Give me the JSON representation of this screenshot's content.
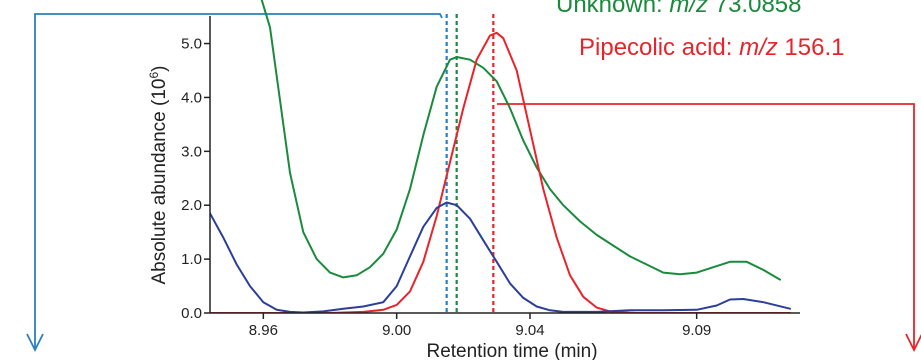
{
  "chart_data": {
    "type": "line",
    "xlabel": "Retention time (min)",
    "ylabel": "Absolute abundance (10⁶)",
    "ylabel_base": "Absolute abundance (10",
    "ylabel_exp": "6",
    "ylabel_close": ")",
    "xlim": [
      8.944,
      9.121
    ],
    "ylim": [
      0,
      5.4
    ],
    "x_ticks": [
      {
        "value": 8.96,
        "label": "8.96"
      },
      {
        "value": 9.0,
        "label": "9.00"
      },
      {
        "value": 9.04,
        "label": "9.04"
      },
      {
        "value": 9.09,
        "label": "9.09"
      }
    ],
    "y_ticks": [
      {
        "value": 0,
        "label": "0.0"
      },
      {
        "value": 1,
        "label": "1.0"
      },
      {
        "value": 2,
        "label": "2.0"
      },
      {
        "value": 3,
        "label": "3.0"
      },
      {
        "value": 4,
        "label": "4.0"
      },
      {
        "value": 5,
        "label": "5.0"
      }
    ],
    "grid": false,
    "legend": [
      {
        "label_prefix": "Unknown: ",
        "label_mz": "m/z",
        "label_value": " 73.0858",
        "color": "#1a8a3c"
      },
      {
        "label_prefix": "Pipecolic acid: ",
        "label_mz": "m/z",
        "label_value": " 156.1",
        "color": "#e8242a"
      }
    ],
    "series": [
      {
        "color": "#1a8a3c",
        "x": [
          8.944,
          8.962,
          8.968,
          8.972,
          8.976,
          8.98,
          8.984,
          8.988,
          8.992,
          8.996,
          9.0,
          9.004,
          9.008,
          9.012,
          9.016,
          9.018,
          9.022,
          9.026,
          9.03,
          9.034,
          9.038,
          9.042,
          9.046,
          9.05,
          9.055,
          9.06,
          9.065,
          9.07,
          9.075,
          9.08,
          9.085,
          9.09,
          9.095,
          9.1,
          9.105,
          9.11,
          9.115
        ],
        "values": [
          9.0,
          5.3,
          2.6,
          1.5,
          1.0,
          0.75,
          0.66,
          0.7,
          0.85,
          1.1,
          1.55,
          2.3,
          3.3,
          4.2,
          4.7,
          4.75,
          4.7,
          4.55,
          4.3,
          3.8,
          3.2,
          2.7,
          2.3,
          2.0,
          1.7,
          1.45,
          1.25,
          1.05,
          0.9,
          0.75,
          0.72,
          0.75,
          0.85,
          0.95,
          0.95,
          0.8,
          0.62
        ]
      },
      {
        "color": "#e8242a",
        "x": [
          8.944,
          8.98,
          8.99,
          8.996,
          9.0,
          9.004,
          9.008,
          9.012,
          9.016,
          9.02,
          9.024,
          9.028,
          9.03,
          9.032,
          9.036,
          9.04,
          9.044,
          9.048,
          9.052,
          9.056,
          9.06,
          9.064,
          9.068,
          9.072,
          9.08,
          9.09,
          9.1,
          9.11,
          9.118
        ],
        "values": [
          0,
          0,
          0.02,
          0.06,
          0.15,
          0.4,
          0.95,
          1.8,
          2.8,
          3.8,
          4.7,
          5.15,
          5.2,
          5.1,
          4.5,
          3.4,
          2.3,
          1.4,
          0.7,
          0.3,
          0.1,
          0.03,
          0.01,
          0,
          0,
          0,
          0,
          0,
          0
        ]
      },
      {
        "color": "#2b3f99",
        "x": [
          8.944,
          8.948,
          8.952,
          8.956,
          8.96,
          8.964,
          8.968,
          8.972,
          8.978,
          8.984,
          8.99,
          8.996,
          9.0,
          9.004,
          9.008,
          9.012,
          9.015,
          9.018,
          9.022,
          9.026,
          9.03,
          9.034,
          9.038,
          9.042,
          9.046,
          9.05,
          9.06,
          9.07,
          9.08,
          9.09,
          9.096,
          9.1,
          9.104,
          9.11,
          9.118
        ],
        "values": [
          1.85,
          1.4,
          0.9,
          0.5,
          0.2,
          0.06,
          0.02,
          0.01,
          0.03,
          0.08,
          0.12,
          0.2,
          0.5,
          1.05,
          1.6,
          1.95,
          2.05,
          2.0,
          1.75,
          1.35,
          0.95,
          0.55,
          0.28,
          0.12,
          0.05,
          0.02,
          0.02,
          0.05,
          0.05,
          0.06,
          0.14,
          0.25,
          0.26,
          0.2,
          0.08
        ]
      }
    ],
    "reference_lines": [
      {
        "x": 9.015,
        "color": "#2a7fc0"
      },
      {
        "x": 9.018,
        "color": "#1a8a3c"
      },
      {
        "x": 9.029,
        "color": "#e8242a"
      }
    ]
  }
}
